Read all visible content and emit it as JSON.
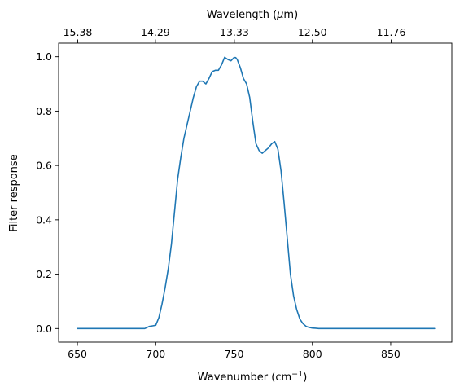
{
  "chart_data": {
    "type": "line",
    "title": "",
    "xlabel_base": "Wavenumber (cm",
    "xlabel_sup": "−1",
    "xlabel_tail": ")",
    "ylabel": "Filter response",
    "top_xlabel_base": "Wavelength (",
    "top_xlabel_mu": "μ",
    "top_xlabel_tail": "m)",
    "xlim": [
      638,
      889
    ],
    "ylim": [
      -0.05,
      1.05
    ],
    "grid": false,
    "legend": "none",
    "line_color": "#1f77b4",
    "x_ticks": [
      650,
      700,
      750,
      800,
      850
    ],
    "x_tick_labels": [
      "650",
      "700",
      "750",
      "800",
      "850"
    ],
    "y_ticks": [
      0.0,
      0.2,
      0.4,
      0.6,
      0.8,
      1.0
    ],
    "y_tick_labels": [
      "0.0",
      "0.2",
      "0.4",
      "0.6",
      "0.8",
      "1.0"
    ],
    "top_ticks": [
      650.2,
      699.8,
      750.2,
      800,
      850.3
    ],
    "top_tick_labels": [
      "15.38",
      "14.29",
      "13.33",
      "12.50",
      "11.76"
    ],
    "series": [
      {
        "x": [
          650,
          660,
          670,
          680,
          690,
          693,
          696,
          698,
          700,
          702,
          704,
          706,
          708,
          710,
          712,
          714,
          716,
          718,
          720,
          722,
          724,
          726,
          728,
          730,
          732,
          734,
          736,
          738,
          740,
          742,
          744,
          746,
          748,
          750,
          751,
          752,
          754,
          756,
          758,
          760,
          762,
          764,
          766,
          768,
          770,
          772,
          774,
          776,
          778,
          780,
          782,
          784,
          786,
          788,
          790,
          792,
          794,
          796,
          798,
          800,
          802,
          804,
          806,
          808,
          810,
          812,
          815,
          820,
          830,
          850,
          878
        ],
        "y": [
          0.0,
          0.0,
          0.0,
          0.0,
          0.0,
          0.0,
          0.008,
          0.01,
          0.012,
          0.04,
          0.09,
          0.15,
          0.22,
          0.31,
          0.43,
          0.55,
          0.63,
          0.7,
          0.75,
          0.8,
          0.85,
          0.89,
          0.91,
          0.91,
          0.9,
          0.92,
          0.945,
          0.95,
          0.95,
          0.97,
          0.998,
          0.99,
          0.985,
          0.997,
          0.997,
          0.99,
          0.96,
          0.92,
          0.9,
          0.85,
          0.76,
          0.68,
          0.655,
          0.645,
          0.655,
          0.665,
          0.68,
          0.688,
          0.66,
          0.58,
          0.46,
          0.33,
          0.2,
          0.12,
          0.07,
          0.035,
          0.018,
          0.008,
          0.004,
          0.002,
          0.001,
          0.0,
          0.0,
          0.0,
          0.0,
          0.0,
          0.0,
          0.0,
          0.0,
          0.0,
          0.0
        ]
      }
    ]
  }
}
